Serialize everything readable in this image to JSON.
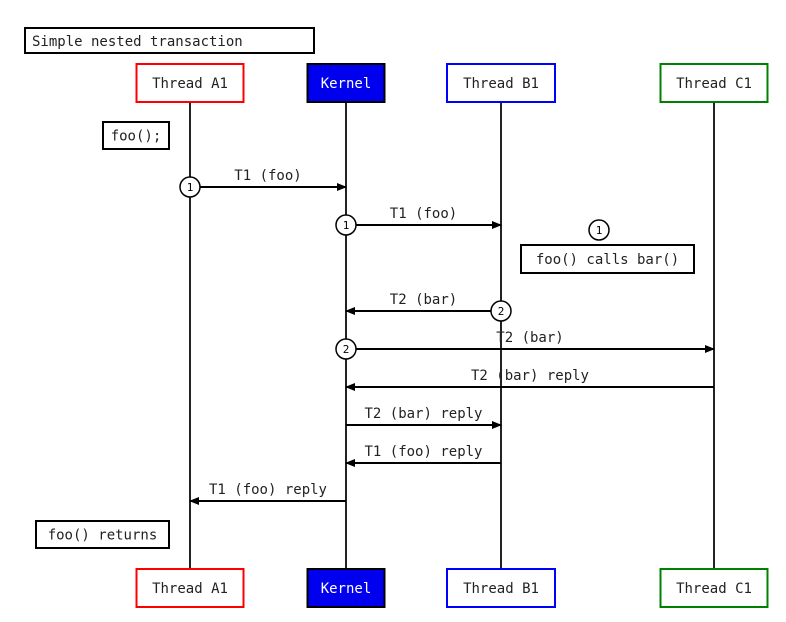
{
  "title": "Simple nested transaction",
  "participants": [
    {
      "id": "A1",
      "label": "Thread A1",
      "border": "#ff0000",
      "fill": "#ffffff",
      "text": "#222222"
    },
    {
      "id": "K",
      "label": "Kernel",
      "border": "#000000",
      "fill": "#0000ee",
      "text": "#ffffff"
    },
    {
      "id": "B1",
      "label": "Thread B1",
      "border": "#0000ff",
      "fill": "#ffffff",
      "text": "#222222"
    },
    {
      "id": "C1",
      "label": "Thread C1",
      "border": "#008000",
      "fill": "#ffffff",
      "text": "#222222"
    }
  ],
  "messages": [
    {
      "from": "A1",
      "to": "K",
      "label": "T1 (foo)",
      "marker": "1"
    },
    {
      "from": "K",
      "to": "B1",
      "label": "T1 (foo)",
      "marker": "1"
    },
    {
      "from": "B1",
      "to": "K",
      "label": "T2 (bar)",
      "marker": "2"
    },
    {
      "from": "K",
      "to": "C1",
      "label": "T2 (bar)",
      "marker": "2"
    },
    {
      "from": "C1",
      "to": "K",
      "label": "T2 (bar) reply",
      "marker": ""
    },
    {
      "from": "K",
      "to": "B1",
      "label": "T2 (bar) reply",
      "marker": ""
    },
    {
      "from": "B1",
      "to": "K",
      "label": "T1 (foo) reply",
      "marker": ""
    },
    {
      "from": "K",
      "to": "A1",
      "label": "T1 (foo) reply",
      "marker": ""
    }
  ],
  "notes": [
    {
      "text": "foo();"
    },
    {
      "text": "foo() calls bar()",
      "marker": "1"
    },
    {
      "text": "foo() returns"
    }
  ]
}
